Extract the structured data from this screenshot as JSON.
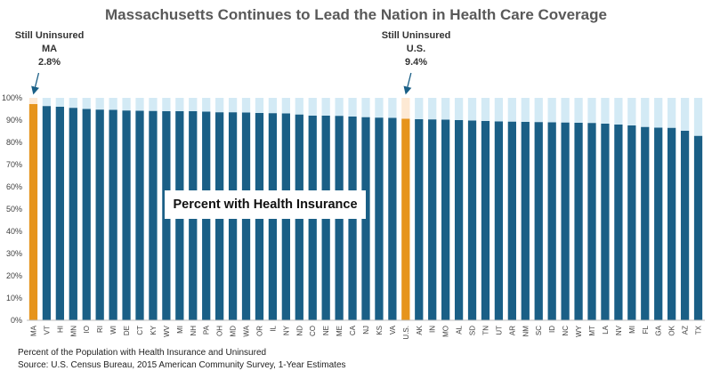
{
  "chart_data": {
    "type": "bar",
    "title": "Massachusetts Continues to Lead the Nation in Health Care Coverage",
    "categories": [
      "MA",
      "VT",
      "HI",
      "MN",
      "IO",
      "RI",
      "WI",
      "DE",
      "CT",
      "KY",
      "WV",
      "MI",
      "NH",
      "PA",
      "OH",
      "MD",
      "WA",
      "OR",
      "IL",
      "NY",
      "ND",
      "CO",
      "NE",
      "ME",
      "CA",
      "NJ",
      "KS",
      "VA",
      "U.S.",
      "AK",
      "IN",
      "MO",
      "AL",
      "SD",
      "TN",
      "UT",
      "AR",
      "NM",
      "SC",
      "ID",
      "NC",
      "WY",
      "MT",
      "LA",
      "NV",
      "MI",
      "FL",
      "GA",
      "OK",
      "AZ",
      "TX"
    ],
    "series": [
      {
        "name": "Percent with Health Insurance",
        "values": [
          97.2,
          96.3,
          96.0,
          95.5,
          95.0,
          94.7,
          94.6,
          94.3,
          94.2,
          94.1,
          94.0,
          94.0,
          94.0,
          93.8,
          93.5,
          93.5,
          93.4,
          93.2,
          93.1,
          93.0,
          92.5,
          92.0,
          92.0,
          91.9,
          91.6,
          91.3,
          91.1,
          91.0,
          90.6,
          90.4,
          90.3,
          90.2,
          90.0,
          89.8,
          89.6,
          89.4,
          89.3,
          89.2,
          89.1,
          89.0,
          88.9,
          88.8,
          88.7,
          88.4,
          88.0,
          87.6,
          86.9,
          86.6,
          86.5,
          85.2,
          82.9
        ]
      },
      {
        "name": "Uninsured",
        "values": [
          2.8,
          3.7,
          4.0,
          4.5,
          5.0,
          5.3,
          5.4,
          5.7,
          5.8,
          5.9,
          6.0,
          6.0,
          6.0,
          6.2,
          6.5,
          6.5,
          6.6,
          6.8,
          6.9,
          7.0,
          7.5,
          8.0,
          8.0,
          8.1,
          8.4,
          8.7,
          8.9,
          9.0,
          9.4,
          9.6,
          9.7,
          9.8,
          10.0,
          10.2,
          10.4,
          10.6,
          10.7,
          10.8,
          10.9,
          11.0,
          11.1,
          11.2,
          11.3,
          11.6,
          12.0,
          12.4,
          13.1,
          13.4,
          13.5,
          14.8,
          17.1
        ]
      }
    ],
    "ylim": [
      0,
      100
    ],
    "yticks": [
      "0%",
      "10%",
      "20%",
      "30%",
      "40%",
      "50%",
      "60%",
      "70%",
      "80%",
      "90%",
      "100%"
    ],
    "highlight_categories": [
      "MA",
      "U.S."
    ],
    "grid": false,
    "colors": {
      "insured": "#1a5f86",
      "uninsured": "#d3eaf5",
      "highlight_insured": "#e6941c",
      "highlight_uninsured": "#fde9d4",
      "axis": "#bfbfbf",
      "arrow": "#1a5f86"
    }
  },
  "callouts": {
    "ma": {
      "heading": "Still Uninsured",
      "region": "MA",
      "value": "2.8%"
    },
    "us": {
      "heading": "Still Uninsured",
      "region": "U.S.",
      "value": "9.4%"
    }
  },
  "legend_label": "Percent with Health Insurance",
  "footnotes": {
    "line1": "Percent of the Population with Health Insurance and Uninsured",
    "line2": "Source: U.S. Census Bureau, 2015 American Community Survey, 1-Year Estimates"
  }
}
